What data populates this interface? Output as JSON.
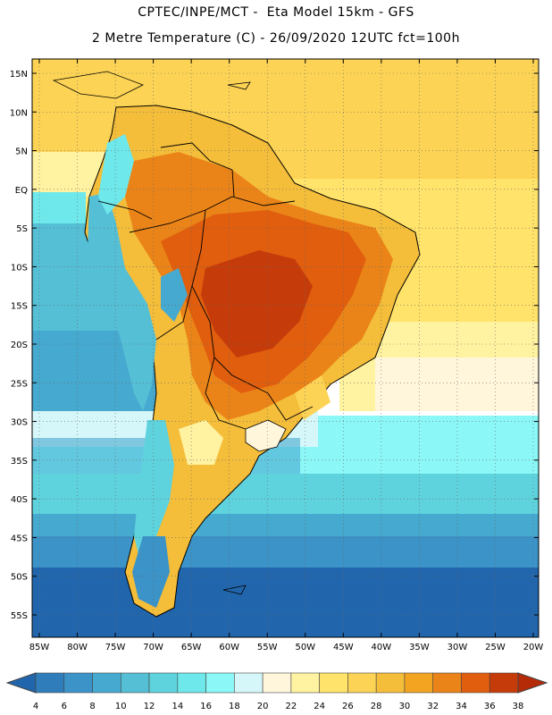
{
  "header": {
    "line1": "CPTEC/INPE/MCT -  Eta Model 15km - GFS",
    "line2": "2 Metre Temperature (C) - 26/09/2020 12UTC fct=100h"
  },
  "map": {
    "lat_labels": [
      "15N",
      "10N",
      "5N",
      "EQ",
      "5S",
      "10S",
      "15S",
      "20S",
      "25S",
      "30S",
      "35S",
      "40S",
      "45S",
      "50S",
      "55S"
    ],
    "lon_labels": [
      "85W",
      "80W",
      "75W",
      "70W",
      "65W",
      "60W",
      "55W",
      "50W",
      "45W",
      "40W",
      "35W",
      "30W",
      "25W",
      "20W"
    ],
    "lat_values": [
      15,
      10,
      5,
      0,
      -5,
      -10,
      -15,
      -20,
      -25,
      -30,
      -35,
      -40,
      -45,
      -50,
      -55
    ],
    "lon_values": [
      -85,
      -80,
      -75,
      -70,
      -65,
      -60,
      -55,
      -50,
      -45,
      -40,
      -35,
      -30,
      -25,
      -20
    ]
  },
  "legend": {
    "labels": [
      "4",
      "6",
      "8",
      "10",
      "12",
      "14",
      "16",
      "18",
      "20",
      "22",
      "24",
      "26",
      "28",
      "30",
      "32",
      "34",
      "36",
      "38"
    ],
    "colors": [
      "#2166ac",
      "#2f7dba",
      "#3b93c8",
      "#46a9cf",
      "#55bfd6",
      "#5fd3dd",
      "#6ee8ea",
      "#8cf7f7",
      "#d6f7fa",
      "#fff6dc",
      "#fff2a0",
      "#ffe36a",
      "#fcd354",
      "#f4bd3a",
      "#f3a421",
      "#ea8418",
      "#e05e0e",
      "#c53c0a",
      "#b52b08"
    ]
  }
}
